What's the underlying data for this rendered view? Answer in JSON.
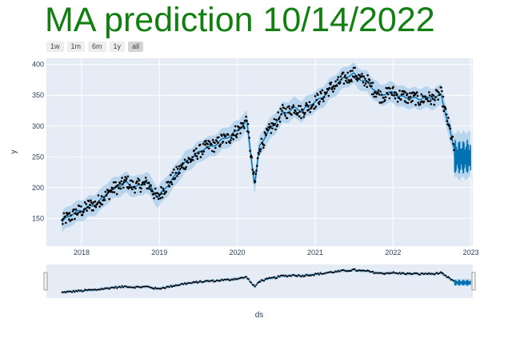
{
  "title": "MA prediction 10/14/2022",
  "range_buttons": [
    {
      "label": "1w",
      "active": false
    },
    {
      "label": "1m",
      "active": false
    },
    {
      "label": "6m",
      "active": false
    },
    {
      "label": "1y",
      "active": false
    },
    {
      "label": "all",
      "active": true
    }
  ],
  "colors": {
    "title": "#118011",
    "plot_bg": "#e5ecf6",
    "grid": "#ffffff",
    "points": "#000000",
    "trend": "#0072B2",
    "band": "#a9cdeb",
    "axis_text": "#2a3f5f"
  },
  "chart_data": {
    "type": "line",
    "title": "MA prediction 10/14/2022",
    "xlabel": "ds",
    "ylabel": "y",
    "xlim": [
      "2017-07-20",
      "2023-01-10"
    ],
    "ylim": [
      105,
      410
    ],
    "grid": true,
    "x_ticks": [
      "2018",
      "2019",
      "2020",
      "2021",
      "2022",
      "2023"
    ],
    "y_ticks": [
      150,
      200,
      250,
      300,
      350,
      400
    ],
    "actual_range": [
      "2017-10-01",
      "2022-10-14"
    ],
    "forecast_range": [
      "2022-10-14",
      "2022-12-31"
    ],
    "anchors": [
      {
        "date": "2017-10-01",
        "value": 144
      },
      {
        "date": "2017-12-01",
        "value": 155
      },
      {
        "date": "2018-02-01",
        "value": 172
      },
      {
        "date": "2018-04-01",
        "value": 180
      },
      {
        "date": "2018-06-01",
        "value": 195
      },
      {
        "date": "2018-08-01",
        "value": 212
      },
      {
        "date": "2018-09-15",
        "value": 203
      },
      {
        "date": "2018-11-01",
        "value": 205
      },
      {
        "date": "2018-12-24",
        "value": 183
      },
      {
        "date": "2019-02-01",
        "value": 205
      },
      {
        "date": "2019-04-01",
        "value": 228
      },
      {
        "date": "2019-06-01",
        "value": 245
      },
      {
        "date": "2019-08-01",
        "value": 268
      },
      {
        "date": "2019-10-01",
        "value": 272
      },
      {
        "date": "2019-12-01",
        "value": 280
      },
      {
        "date": "2020-02-15",
        "value": 312
      },
      {
        "date": "2020-03-23",
        "value": 205
      },
      {
        "date": "2020-04-15",
        "value": 265
      },
      {
        "date": "2020-06-01",
        "value": 290
      },
      {
        "date": "2020-08-01",
        "value": 325
      },
      {
        "date": "2020-09-25",
        "value": 330
      },
      {
        "date": "2020-11-01",
        "value": 320
      },
      {
        "date": "2021-01-01",
        "value": 340
      },
      {
        "date": "2021-03-01",
        "value": 360
      },
      {
        "date": "2021-05-01",
        "value": 370
      },
      {
        "date": "2021-07-01",
        "value": 385
      },
      {
        "date": "2021-09-01",
        "value": 375
      },
      {
        "date": "2021-11-01",
        "value": 345
      },
      {
        "date": "2022-01-01",
        "value": 355
      },
      {
        "date": "2022-03-01",
        "value": 350
      },
      {
        "date": "2022-05-01",
        "value": 340
      },
      {
        "date": "2022-07-01",
        "value": 345
      },
      {
        "date": "2022-08-15",
        "value": 355
      },
      {
        "date": "2022-10-14",
        "value": 262
      }
    ],
    "forecast_level": 250,
    "forecast_band": [
      215,
      290
    ]
  }
}
